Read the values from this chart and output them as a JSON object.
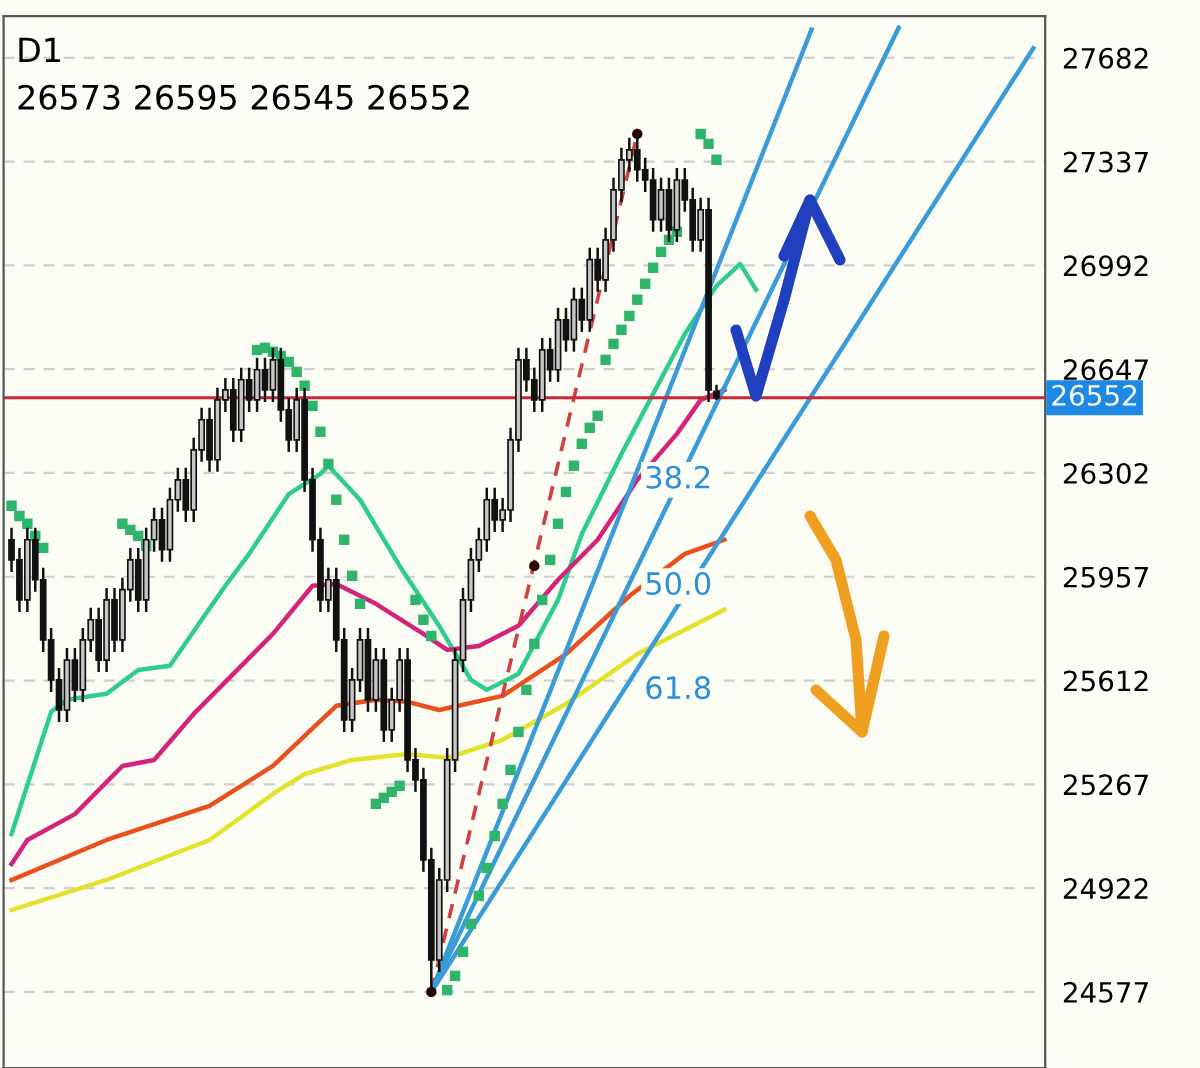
{
  "chart_data": {
    "type": "candlestick",
    "title": "D1",
    "subtitle": "26573 26595 26545 26552",
    "categories": [
      null,
      null,
      null,
      null,
      null,
      null,
      null,
      null,
      null,
      null,
      null,
      null,
      null,
      null,
      null,
      null,
      null,
      null,
      null,
      null,
      null,
      null,
      null,
      null,
      null,
      null,
      null,
      null,
      null,
      null,
      null,
      null,
      null,
      null,
      null,
      null,
      null,
      null,
      null,
      null,
      null,
      null,
      null,
      null,
      null,
      null,
      null,
      null,
      null,
      null,
      null,
      null,
      null,
      null,
      null,
      null,
      null,
      null,
      null,
      null,
      null,
      null,
      null,
      null,
      null,
      null,
      null,
      null,
      null,
      null,
      null,
      null,
      null,
      null,
      null,
      null,
      null,
      null,
      null,
      null,
      null,
      null,
      null,
      null,
      null,
      null,
      null,
      null,
      null,
      null,
      null,
      null,
      null,
      null,
      null,
      null,
      null,
      null,
      null,
      null,
      null,
      null,
      null,
      null,
      null,
      null,
      null,
      null,
      null,
      null,
      null,
      null,
      null,
      null,
      null,
      null,
      null,
      null,
      null,
      null,
      null,
      null,
      null,
      null,
      null,
      null,
      null,
      null,
      null,
      null
    ],
    "ohlc": [
      [
        26080,
        26120,
        25973,
        26013
      ],
      [
        26013,
        26053,
        25840,
        25880
      ],
      [
        25880,
        26120,
        25840,
        26080
      ],
      [
        26080,
        26120,
        25907,
        25947
      ],
      [
        25947,
        25987,
        25707,
        25747
      ],
      [
        25747,
        25787,
        25574,
        25614
      ],
      [
        25614,
        25654,
        25474,
        25514
      ],
      [
        25514,
        25720,
        25474,
        25680
      ],
      [
        25680,
        25720,
        25541,
        25581
      ],
      [
        25581,
        25787,
        25541,
        25747
      ],
      [
        25747,
        25854,
        25707,
        25814
      ],
      [
        25814,
        25854,
        25640,
        25680
      ],
      [
        25680,
        25920,
        25640,
        25880
      ],
      [
        25880,
        25920,
        25707,
        25747
      ],
      [
        25747,
        25954,
        25707,
        25914
      ],
      [
        25914,
        26053,
        25874,
        26013
      ],
      [
        26013,
        26053,
        25840,
        25880
      ],
      [
        25880,
        26120,
        25840,
        26080
      ],
      [
        26080,
        26186,
        26040,
        26146
      ],
      [
        26146,
        26186,
        26007,
        26047
      ],
      [
        26047,
        26253,
        26007,
        26213
      ],
      [
        26213,
        26319,
        26173,
        26279
      ],
      [
        26279,
        26319,
        26139,
        26179
      ],
      [
        26179,
        26419,
        26139,
        26379
      ],
      [
        26379,
        26519,
        26339,
        26479
      ],
      [
        26479,
        26519,
        26306,
        26346
      ],
      [
        26346,
        26585,
        26306,
        26545
      ],
      [
        26545,
        26618,
        26505,
        26578
      ],
      [
        26578,
        26618,
        26405,
        26445
      ],
      [
        26445,
        26652,
        26405,
        26612
      ],
      [
        26612,
        26652,
        26505,
        26545
      ],
      [
        26545,
        26685,
        26505,
        26645
      ],
      [
        26645,
        26685,
        26538,
        26578
      ],
      [
        26578,
        26718,
        26538,
        26678
      ],
      [
        26678,
        26718,
        26472,
        26512
      ],
      [
        26512,
        26552,
        26372,
        26412
      ],
      [
        26412,
        26585,
        26372,
        26545
      ],
      [
        26545,
        26585,
        26239,
        26279
      ],
      [
        26279,
        26319,
        26040,
        26080
      ],
      [
        26080,
        26120,
        25840,
        25880
      ],
      [
        25880,
        25987,
        25840,
        25947
      ],
      [
        25947,
        25987,
        25707,
        25747
      ],
      [
        25747,
        25787,
        25441,
        25481
      ],
      [
        25481,
        25654,
        25441,
        25614
      ],
      [
        25614,
        25787,
        25574,
        25747
      ],
      [
        25747,
        25787,
        25508,
        25548
      ],
      [
        25548,
        25720,
        25508,
        25680
      ],
      [
        25680,
        25720,
        25408,
        25448
      ],
      [
        25448,
        25588,
        25408,
        25548
      ],
      [
        25548,
        25720,
        25508,
        25680
      ],
      [
        25680,
        25720,
        25308,
        25348
      ],
      [
        25348,
        25388,
        25242,
        25282
      ],
      [
        25282,
        25322,
        24976,
        25016
      ],
      [
        25016,
        25056,
        24577,
        24683
      ],
      [
        24683,
        24989,
        24643,
        24949
      ],
      [
        24949,
        25388,
        24909,
        25348
      ],
      [
        25348,
        25720,
        25308,
        25680
      ],
      [
        25680,
        25920,
        25640,
        25880
      ],
      [
        25880,
        26053,
        25840,
        26013
      ],
      [
        26013,
        26120,
        25973,
        26080
      ],
      [
        26080,
        26253,
        26040,
        26213
      ],
      [
        26213,
        26253,
        26106,
        26146
      ],
      [
        26146,
        26219,
        26106,
        26179
      ],
      [
        26179,
        26452,
        26139,
        26412
      ],
      [
        26412,
        26718,
        26372,
        26678
      ],
      [
        26678,
        26718,
        26572,
        26612
      ],
      [
        26612,
        26652,
        26505,
        26545
      ],
      [
        26545,
        26751,
        26505,
        26711
      ],
      [
        26711,
        26751,
        26605,
        26645
      ],
      [
        26645,
        26851,
        26605,
        26811
      ],
      [
        26811,
        26851,
        26705,
        26745
      ],
      [
        26745,
        26918,
        26705,
        26878
      ],
      [
        26878,
        26918,
        26771,
        26811
      ],
      [
        26811,
        27051,
        26771,
        27011
      ],
      [
        27011,
        27051,
        26904,
        26944
      ],
      [
        26944,
        27117,
        26904,
        27077
      ],
      [
        27077,
        27283,
        27037,
        27243
      ],
      [
        27243,
        27383,
        27203,
        27343
      ],
      [
        27343,
        27416,
        27303,
        27376
      ],
      [
        27376,
        27429,
        27270,
        27310
      ],
      [
        27310,
        27350,
        27236,
        27276
      ],
      [
        27276,
        27316,
        27104,
        27144
      ],
      [
        27144,
        27283,
        27104,
        27243
      ],
      [
        27243,
        27283,
        27070,
        27110
      ],
      [
        27110,
        27316,
        27070,
        27276
      ],
      [
        27276,
        27316,
        27170,
        27210
      ],
      [
        27210,
        27250,
        27037,
        27077
      ],
      [
        27077,
        27217,
        27037,
        27177
      ],
      [
        27177,
        27217,
        26538,
        26578
      ],
      [
        26573,
        26595,
        26545,
        26552
      ],
      null,
      null,
      null,
      null,
      null,
      null,
      null,
      null,
      null,
      null,
      null,
      null,
      null,
      null,
      null,
      null,
      null,
      null,
      null,
      null,
      null,
      null,
      null,
      null,
      null,
      null,
      null,
      null,
      null,
      null,
      null,
      null,
      null,
      null,
      null,
      null,
      null,
      null,
      null,
      null
    ],
    "series": [
      {
        "type": "line",
        "color": "#2ecc8f",
        "values": [
          25102,
          null,
          null,
          null,
          null,
          25508,
          null,
          25548,
          null,
          null,
          null,
          null,
          25568,
          null,
          null,
          null,
          25647,
          null,
          null,
          null,
          25661,
          null,
          null,
          null,
          25814,
          null,
          null,
          25927,
          null,
          null,
          26033,
          null,
          null,
          null,
          null,
          26232,
          null,
          null,
          null,
          26299,
          26326,
          null,
          null,
          null,
          26213,
          null,
          null,
          null,
          null,
          25993,
          null,
          null,
          null,
          null,
          25793,
          null,
          null,
          null,
          25614,
          null,
          25581,
          null,
          null,
          null,
          25634,
          null,
          null,
          null,
          null,
          25880,
          null,
          null,
          26099,
          null,
          null,
          null,
          null,
          26365,
          null,
          null,
          null,
          26565,
          null,
          null,
          null,
          26764,
          null,
          null,
          null,
          26924,
          null,
          null,
          26997,
          null,
          26911,
          null,
          null,
          null,
          null,
          null,
          null,
          null,
          null,
          null,
          null,
          null,
          null,
          null,
          null,
          null,
          null,
          null,
          null,
          null,
          null,
          null,
          null,
          null,
          null,
          null,
          null,
          null,
          null,
          null,
          null,
          null,
          null,
          null,
          null,
          null
        ]
      },
      {
        "type": "line",
        "color": "#d4237a",
        "values": [
          25002,
          null,
          25082,
          null,
          null,
          null,
          null,
          null,
          25168,
          null,
          null,
          null,
          null,
          null,
          25328,
          null,
          null,
          null,
          25348,
          null,
          null,
          null,
          null,
          25501,
          null,
          null,
          null,
          null,
          25634,
          null,
          null,
          null,
          null,
          25767,
          null,
          null,
          null,
          null,
          25927,
          null,
          null,
          25933,
          null,
          null,
          null,
          null,
          25867,
          null,
          null,
          null,
          null,
          null,
          25767,
          null,
          null,
          25714,
          null,
          null,
          null,
          25727,
          null,
          null,
          null,
          null,
          25794,
          null,
          null,
          null,
          null,
          25947,
          null,
          null,
          null,
          null,
          26080,
          null,
          null,
          null,
          null,
          26279,
          null,
          null,
          null,
          null,
          26432,
          null,
          null,
          26545,
          null,
          null,
          26578,
          null,
          null,
          null,
          null,
          null,
          null,
          null,
          null,
          null,
          null,
          null,
          null,
          null,
          null,
          null,
          null,
          null,
          null,
          null,
          null,
          null,
          null,
          null,
          null,
          null,
          null,
          null,
          null,
          null,
          null,
          null,
          null,
          null,
          null,
          null,
          null,
          null,
          null,
          null
        ]
      },
      {
        "type": "line",
        "color": "#e8501e",
        "values": [
          24949,
          null,
          null,
          null,
          null,
          null,
          null,
          null,
          null,
          null,
          null,
          null,
          25082,
          null,
          null,
          null,
          null,
          null,
          null,
          null,
          null,
          null,
          null,
          null,
          null,
          25195,
          null,
          null,
          null,
          null,
          null,
          null,
          null,
          25328,
          null,
          null,
          null,
          null,
          null,
          null,
          null,
          25528,
          null,
          null,
          null,
          null,
          25548,
          null,
          null,
          null,
          25541,
          null,
          null,
          null,
          25514,
          null,
          null,
          null,
          null,
          null,
          null,
          null,
          25561,
          null,
          null,
          null,
          null,
          null,
          null,
          null,
          25700,
          null,
          null,
          null,
          null,
          null,
          null,
          null,
          25893,
          null,
          null,
          null,
          null,
          null,
          null,
          26033,
          null,
          null,
          null,
          null,
          26080,
          null,
          null,
          null,
          null,
          null,
          null,
          null,
          null,
          null,
          null,
          null,
          null,
          null,
          null,
          null,
          null,
          null,
          null,
          null,
          null,
          null,
          null,
          null,
          null,
          null,
          null,
          null,
          null,
          null,
          null,
          null,
          null,
          null,
          null,
          null,
          null,
          null,
          null,
          null
        ]
      },
      {
        "type": "line",
        "color": "#e2e22a",
        "values": [
          24849,
          null,
          null,
          null,
          null,
          null,
          null,
          null,
          null,
          null,
          null,
          null,
          24949,
          null,
          null,
          null,
          null,
          null,
          null,
          null,
          null,
          null,
          null,
          null,
          null,
          25082,
          null,
          null,
          null,
          null,
          null,
          null,
          null,
          25235,
          null,
          null,
          null,
          25301,
          null,
          null,
          null,
          null,
          null,
          25348,
          null,
          null,
          null,
          null,
          null,
          null,
          25368,
          null,
          null,
          null,
          null,
          25355,
          null,
          null,
          null,
          null,
          null,
          null,
          25415,
          null,
          null,
          null,
          null,
          null,
          null,
          null,
          25534,
          null,
          null,
          null,
          null,
          null,
          null,
          null,
          null,
          25700,
          null,
          null,
          null,
          null,
          null,
          null,
          null,
          null,
          null,
          null,
          25847,
          null,
          null,
          null,
          null,
          null,
          null,
          null,
          null,
          null,
          null,
          null,
          null,
          null,
          null,
          null,
          null,
          null,
          null,
          null,
          null,
          null,
          null,
          null,
          null,
          null,
          null,
          null,
          null,
          null,
          null,
          null,
          null,
          null,
          null,
          null,
          null,
          null,
          null,
          null
        ]
      },
      {
        "type": "scatter",
        "color": "#2fb56b",
        "marker": "square",
        "values": [
          26193,
          26159,
          26133,
          26093,
          26053,
          null,
          null,
          null,
          null,
          null,
          null,
          null,
          null,
          null,
          26133,
          26113,
          26093,
          26060,
          null,
          null,
          null,
          null,
          null,
          null,
          null,
          null,
          null,
          null,
          null,
          null,
          null,
          26711,
          26718,
          26705,
          26691,
          26671,
          26638,
          26592,
          26525,
          26439,
          26332,
          26213,
          26080,
          25960,
          25867,
          null,
          25202,
          25222,
          25242,
          25262,
          null,
          25880,
          25814,
          25760,
          null,
          24583,
          24630,
          24710,
          24803,
          24896,
          24989,
          25095,
          25202,
          25315,
          25441,
          25581,
          25734,
          25880,
          26013,
          26133,
          26239,
          26326,
          26399,
          26452,
          26492,
          26678,
          26731,
          26778,
          26824,
          26878,
          26931,
          26984,
          27037,
          27077,
          27104,
          null,
          null,
          27429,
          27396,
          27343,
          null,
          null,
          null,
          null,
          null,
          null,
          null,
          null,
          null,
          null,
          null,
          null,
          null,
          null,
          null,
          null,
          null,
          null,
          null,
          null,
          null,
          null,
          null,
          null,
          null,
          null,
          null,
          null,
          null,
          null,
          null,
          null,
          null,
          null,
          null,
          null,
          null,
          null,
          null,
          null
        ]
      },
      {
        "type": "line",
        "color": "#d04040",
        "line_style": "dashed",
        "values": [
          null,
          null,
          null,
          null,
          null,
          null,
          null,
          null,
          null,
          null,
          null,
          null,
          null,
          null,
          null,
          null,
          null,
          null,
          null,
          null,
          null,
          null,
          null,
          null,
          null,
          null,
          null,
          null,
          null,
          null,
          null,
          null,
          null,
          null,
          null,
          null,
          null,
          null,
          null,
          null,
          null,
          null,
          null,
          null,
          null,
          null,
          null,
          null,
          null,
          null,
          null,
          null,
          null,
          24577,
          null,
          null,
          null,
          null,
          null,
          null,
          null,
          null,
          null,
          null,
          null,
          null,
          null,
          null,
          null,
          null,
          null,
          null,
          null,
          null,
          null,
          null,
          null,
          null,
          null,
          27429,
          null,
          null,
          null,
          null,
          null,
          null,
          null,
          null,
          null,
          null,
          null,
          null,
          null,
          null,
          null,
          null,
          null,
          null,
          null,
          null,
          null,
          null,
          null,
          null,
          null,
          null,
          null,
          null,
          null,
          null,
          null,
          null,
          null,
          null,
          null,
          null,
          null,
          null,
          null,
          null,
          null,
          null,
          null,
          null,
          null,
          null,
          null,
          null,
          null,
          null
        ]
      },
      {
        "type": "scatter",
        "color": "#2a0000",
        "marker": "circle",
        "values": [
          null,
          null,
          null,
          null,
          null,
          null,
          null,
          null,
          null,
          null,
          null,
          null,
          null,
          null,
          null,
          null,
          null,
          null,
          null,
          null,
          null,
          null,
          null,
          null,
          null,
          null,
          null,
          null,
          null,
          null,
          null,
          null,
          null,
          null,
          null,
          null,
          null,
          null,
          null,
          null,
          null,
          null,
          null,
          null,
          null,
          null,
          null,
          null,
          null,
          null,
          null,
          null,
          null,
          24577,
          null,
          null,
          null,
          null,
          null,
          null,
          null,
          null,
          null,
          null,
          null,
          null,
          25993,
          null,
          null,
          null,
          null,
          null,
          null,
          null,
          null,
          null,
          null,
          null,
          null,
          27429,
          null,
          null,
          null,
          null,
          null,
          null,
          null,
          null,
          null,
          null,
          null,
          null,
          null,
          null,
          null,
          null,
          null,
          null,
          null,
          null,
          null,
          null,
          null,
          null,
          null,
          null,
          null,
          null,
          null,
          null,
          null,
          null,
          null,
          null,
          null,
          null,
          null,
          null,
          null,
          null,
          null,
          null,
          null,
          null,
          null,
          null,
          null,
          null,
          null,
          null
        ]
      },
      {
        "type": "line",
        "color": "#3a9bd9",
        "values": [
          null,
          null,
          null,
          null,
          null,
          null,
          null,
          null,
          null,
          null,
          null,
          null,
          null,
          null,
          null,
          null,
          null,
          null,
          null,
          null,
          null,
          null,
          null,
          null,
          null,
          null,
          null,
          null,
          null,
          null,
          null,
          null,
          null,
          null,
          null,
          null,
          null,
          null,
          null,
          null,
          null,
          null,
          null,
          null,
          null,
          null,
          null,
          null,
          null,
          null,
          null,
          null,
          null,
          24577,
          null,
          null,
          null,
          null,
          null,
          null,
          null,
          null,
          null,
          null,
          null,
          null,
          null,
          null,
          null,
          null,
          null,
          null,
          null,
          null,
          null,
          null,
          null,
          null,
          null,
          null,
          null,
          null,
          null,
          null,
          null,
          null,
          null,
          null,
          null,
          null,
          null,
          null,
          null,
          null,
          null,
          null,
          null,
          null,
          null,
          null,
          null,
          27776,
          null,
          null,
          null,
          null,
          null,
          null,
          null,
          null,
          null,
          null,
          null,
          null,
          null,
          null,
          null,
          null,
          null,
          null,
          null,
          null,
          null,
          null,
          null,
          null,
          null,
          null,
          null,
          null
        ]
      },
      {
        "type": "line",
        "color": "#3a9bd9",
        "values": [
          null,
          null,
          null,
          null,
          null,
          null,
          null,
          null,
          null,
          null,
          null,
          null,
          null,
          null,
          null,
          null,
          null,
          null,
          null,
          null,
          null,
          null,
          null,
          null,
          null,
          null,
          null,
          null,
          null,
          null,
          null,
          null,
          null,
          null,
          null,
          null,
          null,
          null,
          null,
          null,
          null,
          null,
          null,
          null,
          null,
          null,
          null,
          null,
          null,
          null,
          null,
          null,
          null,
          24577,
          null,
          null,
          null,
          null,
          null,
          null,
          null,
          null,
          null,
          null,
          null,
          null,
          null,
          null,
          null,
          null,
          null,
          null,
          null,
          null,
          null,
          null,
          null,
          null,
          null,
          null,
          null,
          null,
          null,
          null,
          null,
          null,
          null,
          null,
          null,
          null,
          null,
          null,
          null,
          null,
          null,
          null,
          null,
          null,
          null,
          null,
          null,
          null,
          null,
          null,
          null,
          null,
          null,
          null,
          null,
          null,
          null,
          null,
          27782,
          null,
          null,
          null,
          null,
          null,
          null,
          null,
          null,
          null,
          null,
          null,
          null,
          null,
          null,
          null,
          null,
          null
        ]
      },
      {
        "type": "line",
        "color": "#3a9bd9",
        "values": [
          null,
          null,
          null,
          null,
          null,
          null,
          null,
          null,
          null,
          null,
          null,
          null,
          null,
          null,
          null,
          null,
          null,
          null,
          null,
          null,
          null,
          null,
          null,
          null,
          null,
          null,
          null,
          null,
          null,
          null,
          null,
          null,
          null,
          null,
          null,
          null,
          null,
          null,
          null,
          null,
          null,
          null,
          null,
          null,
          null,
          null,
          null,
          null,
          null,
          null,
          null,
          null,
          null,
          24577,
          null,
          null,
          null,
          null,
          null,
          null,
          null,
          null,
          null,
          null,
          null,
          null,
          null,
          null,
          null,
          null,
          null,
          null,
          null,
          null,
          null,
          null,
          null,
          null,
          null,
          null,
          null,
          null,
          null,
          null,
          null,
          null,
          null,
          null,
          null,
          null,
          null,
          null,
          null,
          null,
          null,
          null,
          null,
          null,
          null,
          null,
          null,
          null,
          null,
          null,
          null,
          null,
          null,
          null,
          null,
          null,
          null,
          null,
          null,
          null,
          null,
          null,
          null,
          null,
          null,
          null,
          null,
          null,
          null,
          null,
          null,
          null,
          null,
          null,
          null,
          27714
        ]
      }
    ],
    "annotations": [
      "38.2",
      "50.0",
      "61.8"
    ],
    "ref_lines": [
      {
        "axis": "y",
        "value": 26552,
        "label": "26552",
        "color": "#c8283c"
      }
    ],
    "ylim": [
      24324,
      27821
    ],
    "yticks": [
      24577,
      24922,
      25267,
      25612,
      25957,
      26302,
      26647,
      26992,
      27337,
      27682
    ],
    "grid": "y",
    "tick_labels": "y"
  }
}
